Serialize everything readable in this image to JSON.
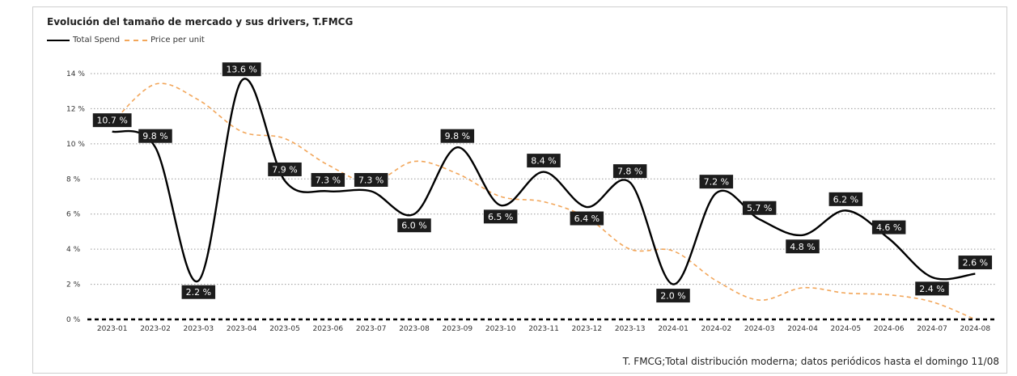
{
  "chart_data": {
    "type": "line",
    "title": "Evolución del tamaño de mercado y sus drivers, T.FMCG",
    "footnote": "T. FMCG;Total distribución moderna; datos periódicos hasta el domingo 11/08",
    "categories": [
      "2023-01",
      "2023-02",
      "2023-03",
      "2023-04",
      "2023-05",
      "2023-06",
      "2023-07",
      "2023-08",
      "2023-09",
      "2023-10",
      "2023-11",
      "2023-12",
      "2023-13",
      "2024-01",
      "2024-02",
      "2024-03",
      "2024-04",
      "2024-05",
      "2024-06",
      "2024-07",
      "2024-08"
    ],
    "ylim": [
      0,
      14
    ],
    "yticks": [
      0,
      2,
      4,
      6,
      8,
      10,
      12,
      14
    ],
    "ytick_labels": [
      "0 %",
      "2 %",
      "4 %",
      "6 %",
      "8 %",
      "10 %",
      "12 %",
      "14 %"
    ],
    "grid": true,
    "legend_position": "top-left",
    "series": [
      {
        "name": "Total Spend",
        "color": "#000000",
        "style": "solid",
        "values": [
          10.7,
          9.8,
          2.2,
          13.6,
          7.9,
          7.3,
          7.3,
          6.0,
          9.8,
          6.5,
          8.4,
          6.4,
          7.8,
          2.0,
          7.2,
          5.7,
          4.8,
          6.2,
          4.6,
          2.4,
          2.6
        ],
        "data_labels": [
          "10.7 %",
          "9.8 %",
          "2.2 %",
          "13.6 %",
          "7.9 %",
          "7.3 %",
          "7.3 %",
          "6.0 %",
          "9.8 %",
          "6.5 %",
          "8.4 %",
          "6.4 %",
          "7.8 %",
          "2.0 %",
          "7.2 %",
          "5.7 %",
          "4.8 %",
          "6.2 %",
          "4.6 %",
          "2.4 %",
          "2.6 %"
        ],
        "label_position": [
          "above",
          "above",
          "below",
          "above",
          "above",
          "above",
          "above",
          "below",
          "above",
          "below",
          "above",
          "below",
          "above",
          "below",
          "above",
          "above",
          "below",
          "above",
          "above",
          "below",
          "above"
        ]
      },
      {
        "name": "Price per unit",
        "color": "#f2a65a",
        "style": "dashed",
        "values": [
          11.2,
          13.4,
          12.5,
          10.7,
          10.3,
          8.8,
          7.8,
          9.0,
          8.3,
          7.0,
          6.7,
          5.8,
          4.0,
          3.9,
          2.2,
          1.1,
          1.8,
          1.5,
          1.4,
          1.0,
          0.0
        ]
      }
    ],
    "zero_line": {
      "color": "#000000",
      "style": "dashed"
    }
  }
}
